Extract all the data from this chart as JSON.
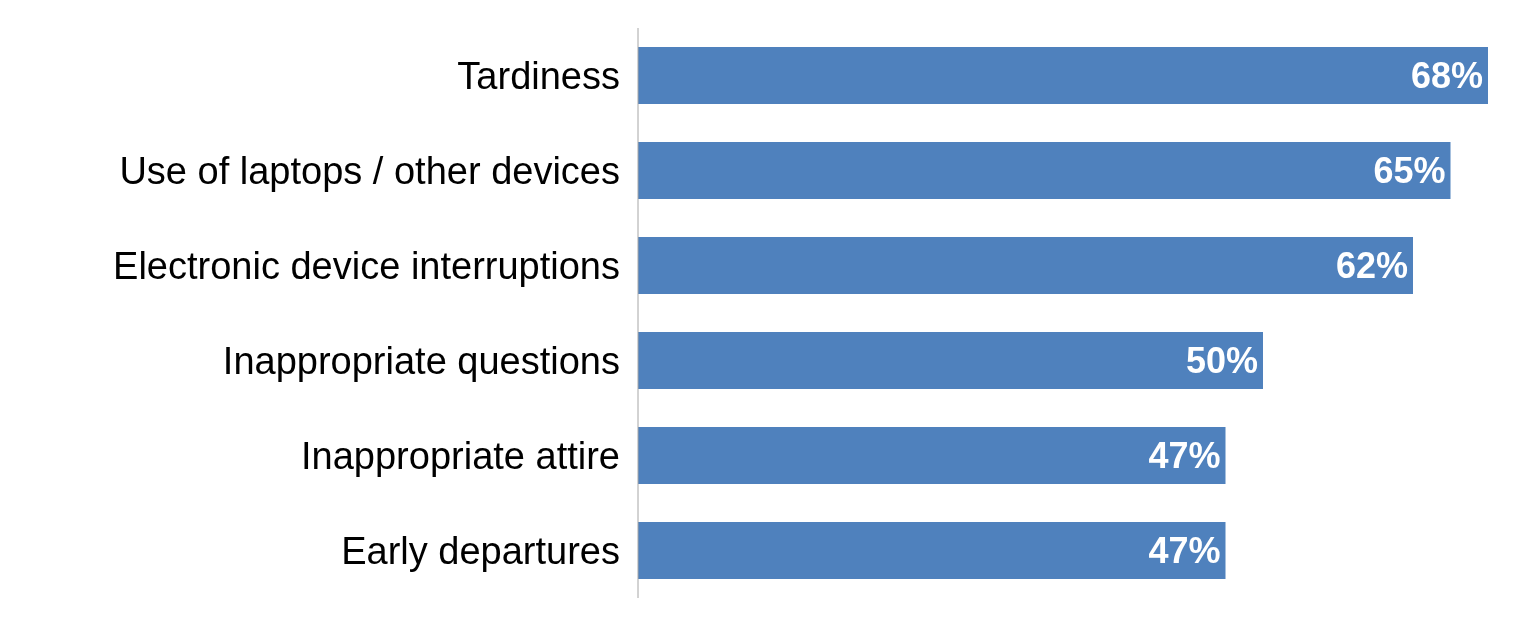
{
  "chart_data": {
    "type": "bar",
    "orientation": "horizontal",
    "categories": [
      "Tardiness",
      "Use of laptops / other devices",
      "Electronic device interruptions",
      "Inappropriate questions",
      "Inappropriate attire",
      "Early departures"
    ],
    "values": [
      68,
      65,
      62,
      50,
      47,
      47
    ],
    "value_labels": [
      "68%",
      "65%",
      "62%",
      "50%",
      "47%",
      "47%"
    ],
    "color": "#4f81bd",
    "xlim": [
      0,
      68
    ],
    "tick_labels": "y",
    "grid": false
  }
}
